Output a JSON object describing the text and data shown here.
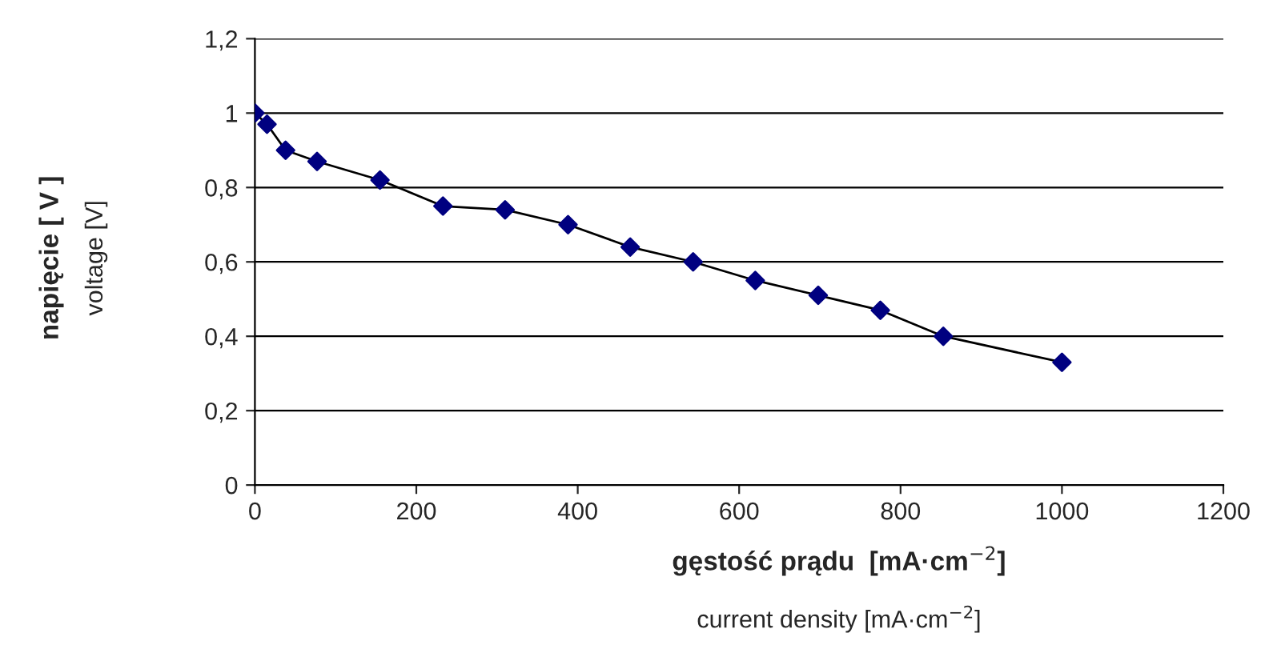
{
  "chart_data": {
    "type": "line",
    "xlabel": "gęstość prądu  [mA·cm$^{−2}$]\ncurrent density [mA·cm$^{−2}$]",
    "ylabel": "napięcie [ V ]\nvoltage [V]",
    "x": [
      0,
      15,
      38,
      77,
      155,
      233,
      310,
      388,
      465,
      543,
      620,
      698,
      775,
      853,
      1000
    ],
    "series": [
      {
        "color": "#000080",
        "values": [
          1.0,
          0.97,
          0.9,
          0.87,
          0.82,
          0.75,
          0.74,
          0.7,
          0.64,
          0.6,
          0.55,
          0.51,
          0.47,
          0.4,
          0.33
        ]
      }
    ],
    "xlim": [
      0,
      1200
    ],
    "xticks": [
      0,
      200,
      400,
      600,
      800,
      1000,
      1200
    ],
    "ylim": [
      0,
      1.2
    ],
    "yticks": [
      0,
      {
        "value": 0.2,
        "label": "0,2"
      },
      {
        "value": 0.4,
        "label": "0,4"
      },
      {
        "value": 0.6,
        "label": "0,6"
      },
      {
        "value": 0.8,
        "label": "0,8"
      },
      1,
      {
        "value": 1.2,
        "label": "1,2"
      }
    ],
    "grid": "y",
    "marker": "diamond",
    "line_style": "solid"
  }
}
